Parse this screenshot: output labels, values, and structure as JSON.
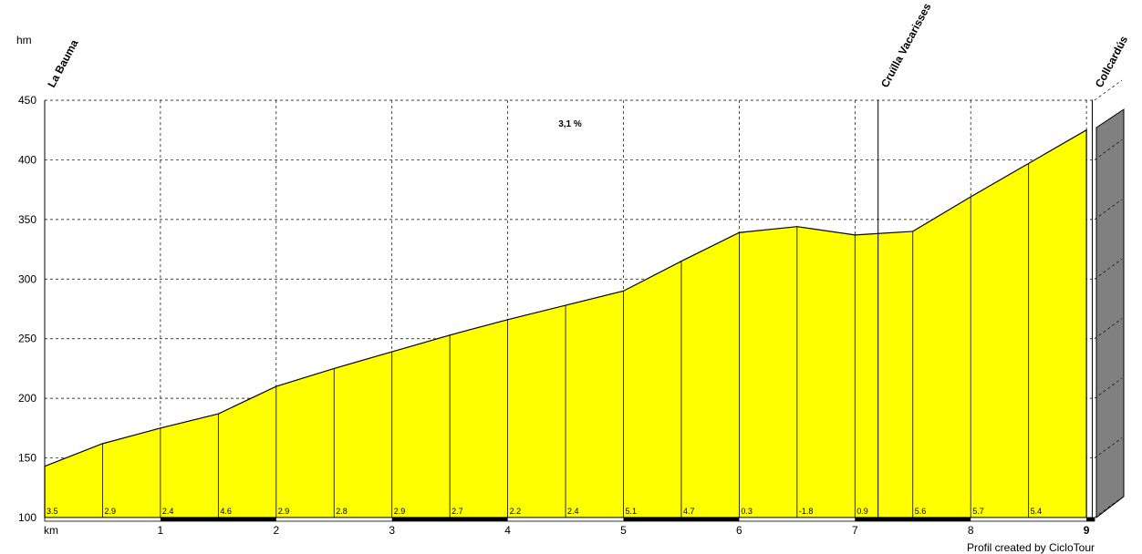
{
  "chart_data": {
    "type": "area",
    "y_unit": "hm",
    "x_unit": "km",
    "average_gradient": "3,1 %",
    "credit": "Profil created by CicloTour",
    "x": [
      0,
      0.5,
      1,
      1.5,
      2,
      2.5,
      3,
      3.5,
      4,
      4.5,
      5,
      5.5,
      6,
      6.5,
      7,
      7.5,
      8,
      8.5,
      9
    ],
    "values": [
      143,
      162,
      175,
      187,
      210,
      225,
      239,
      253,
      266,
      278,
      290,
      315,
      339,
      344,
      337,
      340,
      369,
      397,
      425
    ],
    "gradients": [
      3.5,
      2.9,
      2.4,
      4.6,
      2.9,
      2.8,
      2.9,
      2.7,
      2.2,
      2.4,
      5.1,
      4.7,
      0.3,
      -1.8,
      0.9,
      5.6,
      5.7,
      5.4
    ],
    "color": "#ffff00",
    "waypoints": [
      {
        "name": "La Bauma",
        "x": 0
      },
      {
        "name": "Cruïlla Vacarisses",
        "x": 7.2
      },
      {
        "name": "Collcardús",
        "x": 9.05
      }
    ],
    "xlim": [
      0,
      9.07
    ],
    "xticks": [
      1,
      2,
      3,
      4,
      5,
      6,
      7,
      8,
      9
    ],
    "ylim": [
      100,
      450
    ],
    "yticks": [
      100,
      150,
      200,
      250,
      300,
      350,
      400,
      450
    ],
    "grid": true
  }
}
